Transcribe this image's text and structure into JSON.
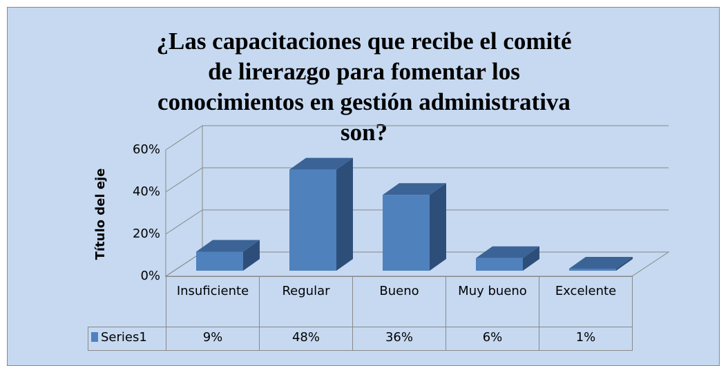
{
  "chart_data": {
    "type": "bar3d",
    "title": "¿Las capacitaciones que recibe el comité de lirerazgo para fomentar los conocimientos en gestión administrativa son?",
    "y_axis_label": "Título del eje",
    "categories": [
      "Insuficiente",
      "Regular",
      "Bueno",
      "Muy bueno",
      "Excelente"
    ],
    "series": [
      {
        "name": "Series1",
        "color": "#4f81bd",
        "values": [
          9,
          48,
          36,
          6,
          1
        ],
        "value_labels": [
          "9%",
          "48%",
          "36%",
          "6%",
          "1%"
        ]
      }
    ],
    "ylim": [
      0,
      60
    ],
    "yticks": [
      {
        "value": 0,
        "label": "0%"
      },
      {
        "value": 20,
        "label": "20%"
      },
      {
        "value": 40,
        "label": "40%"
      },
      {
        "value": 60,
        "label": "60%"
      }
    ],
    "grid": true,
    "data_table": true
  }
}
